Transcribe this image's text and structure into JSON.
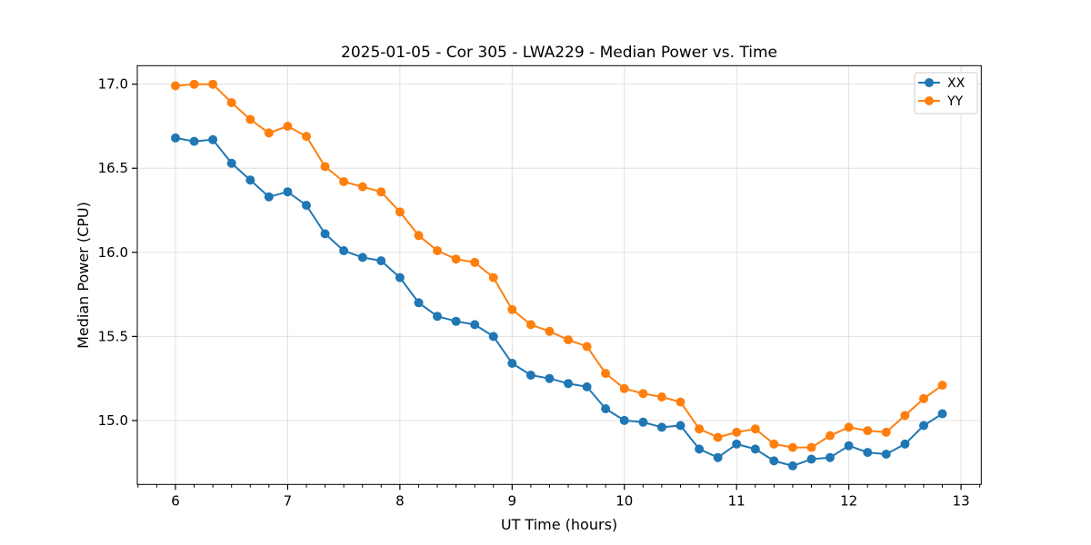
{
  "figure": {
    "background": "#ffffff"
  },
  "colors": {
    "grid": "#e0e0e0",
    "spine": "#000000",
    "tick": "#000000",
    "text": "#000000",
    "legend_border": "#cccccc",
    "legend_background": "#ffffff"
  },
  "chart_data": {
    "type": "line",
    "title": "2025-01-05 - Cor 305 - LWA229 - Median Power vs. Time",
    "xlabel": "UT Time (hours)",
    "ylabel": "Median Power (CPU)",
    "xlim": [
      5.66,
      13.18
    ],
    "ylim": [
      14.62,
      17.11
    ],
    "x_major_ticks": [
      6,
      7,
      8,
      9,
      10,
      11,
      12,
      13
    ],
    "x_major_tick_labels": [
      "6",
      "7",
      "8",
      "9",
      "10",
      "11",
      "12",
      "13"
    ],
    "x_minor_tick_step": 0.16667,
    "y_major_ticks": [
      15.0,
      15.5,
      16.0,
      16.5,
      17.0
    ],
    "y_major_tick_labels": [
      "15.0",
      "15.5",
      "16.0",
      "16.5",
      "17.0"
    ],
    "grid": "major-both",
    "legend_position": "upper-right",
    "x": [
      6.0,
      6.167,
      6.333,
      6.5,
      6.667,
      6.833,
      7.0,
      7.167,
      7.333,
      7.5,
      7.667,
      7.833,
      8.0,
      8.167,
      8.333,
      8.5,
      8.667,
      8.833,
      9.0,
      9.167,
      9.333,
      9.5,
      9.667,
      9.833,
      10.0,
      10.167,
      10.333,
      10.5,
      10.667,
      10.833,
      11.0,
      11.167,
      11.333,
      11.5,
      11.667,
      11.833,
      12.0,
      12.167,
      12.333,
      12.5,
      12.667,
      12.833
    ],
    "series": [
      {
        "name": "XX",
        "color": "#1f77b4",
        "marker": "circle",
        "values": [
          16.68,
          16.66,
          16.67,
          16.53,
          16.43,
          16.33,
          16.36,
          16.28,
          16.11,
          16.01,
          15.97,
          15.95,
          15.85,
          15.7,
          15.62,
          15.59,
          15.57,
          15.5,
          15.34,
          15.27,
          15.25,
          15.22,
          15.2,
          15.07,
          15.0,
          14.99,
          14.96,
          14.97,
          14.83,
          14.78,
          14.86,
          14.83,
          14.76,
          14.73,
          14.77,
          14.78,
          14.85,
          14.81,
          14.8,
          14.86,
          14.97,
          15.04
        ]
      },
      {
        "name": "YY",
        "color": "#ff7f0e",
        "marker": "circle",
        "values": [
          16.99,
          17.0,
          17.0,
          16.89,
          16.79,
          16.71,
          16.75,
          16.69,
          16.51,
          16.42,
          16.39,
          16.36,
          16.24,
          16.1,
          16.01,
          15.96,
          15.94,
          15.85,
          15.66,
          15.57,
          15.53,
          15.48,
          15.44,
          15.28,
          15.19,
          15.16,
          15.14,
          15.11,
          14.95,
          14.9,
          14.93,
          14.95,
          14.86,
          14.84,
          14.84,
          14.91,
          14.96,
          14.94,
          14.93,
          15.03,
          15.13,
          15.21
        ]
      }
    ]
  }
}
